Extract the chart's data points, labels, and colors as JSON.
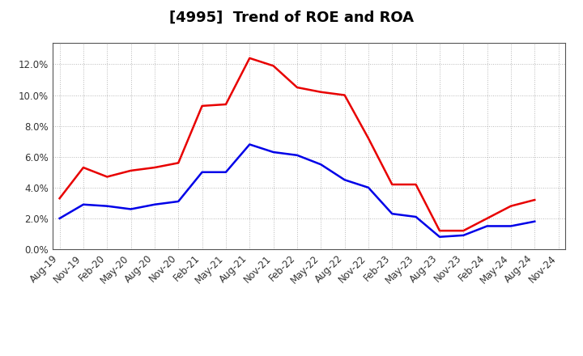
{
  "title": "[4995]  Trend of ROE and ROA",
  "x_labels": [
    "Aug-19",
    "Nov-19",
    "Feb-20",
    "May-20",
    "Aug-20",
    "Nov-20",
    "Feb-21",
    "May-21",
    "Aug-21",
    "Nov-21",
    "Feb-22",
    "May-22",
    "Aug-22",
    "Nov-22",
    "Feb-23",
    "May-23",
    "Aug-23",
    "Nov-23",
    "Feb-24",
    "May-24",
    "Aug-24",
    "Nov-24"
  ],
  "roe": [
    3.3,
    5.3,
    4.7,
    5.1,
    5.3,
    5.6,
    9.3,
    9.4,
    12.4,
    11.9,
    10.5,
    10.2,
    10.0,
    7.2,
    4.2,
    4.2,
    1.2,
    1.2,
    2.0,
    2.8,
    3.2,
    null
  ],
  "roa": [
    2.0,
    2.9,
    2.8,
    2.6,
    2.9,
    3.1,
    5.0,
    5.0,
    6.8,
    6.3,
    6.1,
    5.5,
    4.5,
    4.0,
    2.3,
    2.1,
    0.8,
    0.9,
    1.5,
    1.5,
    1.8,
    null
  ],
  "roe_color": "#e80000",
  "roa_color": "#0000e8",
  "ylim": [
    0.0,
    0.134
  ],
  "yticks": [
    0.0,
    0.02,
    0.04,
    0.06,
    0.08,
    0.1,
    0.12
  ],
  "background_color": "#ffffff",
  "grid_color": "#999999",
  "title_fontsize": 13,
  "legend_fontsize": 10,
  "tick_fontsize": 8.5
}
